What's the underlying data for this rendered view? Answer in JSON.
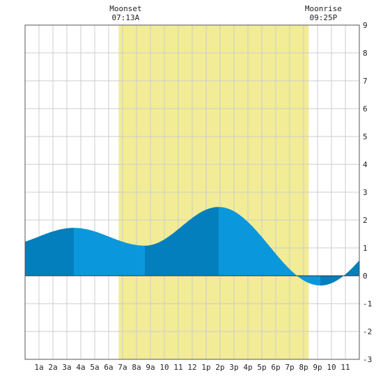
{
  "chart_data": {
    "type": "area",
    "title": "",
    "xlabel": "",
    "ylabel": "",
    "x_unit": "hour of day",
    "xlim": [
      0,
      24
    ],
    "ylim": [
      -3,
      9
    ],
    "y_ticks": [
      "-3",
      "-2",
      "-1",
      "0",
      "1",
      "2",
      "3",
      "4",
      "5",
      "6",
      "7",
      "8",
      "9"
    ],
    "x_ticks": [
      {
        "x": 1,
        "label": "1a"
      },
      {
        "x": 2,
        "label": "2a"
      },
      {
        "x": 3,
        "label": "3a"
      },
      {
        "x": 4,
        "label": "4a"
      },
      {
        "x": 5,
        "label": "5a"
      },
      {
        "x": 6,
        "label": "6a"
      },
      {
        "x": 7,
        "label": "7a"
      },
      {
        "x": 8,
        "label": "8a"
      },
      {
        "x": 9,
        "label": "9a"
      },
      {
        "x": 10,
        "label": "10"
      },
      {
        "x": 11,
        "label": "11"
      },
      {
        "x": 12,
        "label": "12"
      },
      {
        "x": 13,
        "label": "1p"
      },
      {
        "x": 14,
        "label": "2p"
      },
      {
        "x": 15,
        "label": "3p"
      },
      {
        "x": 16,
        "label": "4p"
      },
      {
        "x": 17,
        "label": "5p"
      },
      {
        "x": 18,
        "label": "6p"
      },
      {
        "x": 19,
        "label": "7p"
      },
      {
        "x": 20,
        "label": "8p"
      },
      {
        "x": 21,
        "label": "9p"
      },
      {
        "x": 22,
        "label": "10"
      },
      {
        "x": 23,
        "label": "11"
      }
    ],
    "grid": true,
    "moon_up": {
      "start": 6.72,
      "end": 20.37
    },
    "annotations": {
      "moonset": {
        "label": "Moonset",
        "time": "07:13A",
        "x": 7.22
      },
      "moonrise": {
        "label": "Moonrise",
        "time": "09:25P",
        "x": 21.42
      }
    },
    "tide_extrema": [
      {
        "x": 3.5,
        "y": 1.72,
        "kind": "high"
      },
      {
        "x": 8.6,
        "y": 1.08,
        "kind": "low"
      },
      {
        "x": 13.9,
        "y": 2.47,
        "kind": "high"
      },
      {
        "x": 21.2,
        "y": -0.35,
        "kind": "low"
      }
    ],
    "start_level": 0.82,
    "end_level": 0.55,
    "colors": {
      "moon_band": "#f2ec96",
      "tide_light": "#0b97dc",
      "tide_dark": "#047fbd",
      "grid": "#cccccc",
      "axis": "#555555",
      "background": "#ffffff"
    }
  }
}
